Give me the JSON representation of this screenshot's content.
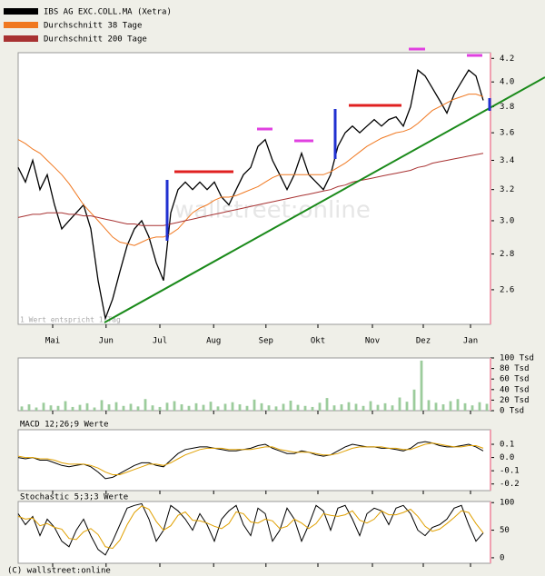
{
  "chart_data": [
    {
      "type": "line",
      "log_scale": true,
      "note": "1 Wert entspricht 1 Tag",
      "watermark": "wallstreet:online",
      "xlim": [
        0,
        65
      ],
      "xticks": [
        {
          "value": 4.75,
          "label": "Mai"
        },
        {
          "value": 12.1,
          "label": "Jun"
        },
        {
          "value": 19.5,
          "label": "Jul"
        },
        {
          "value": 26.9,
          "label": "Aug"
        },
        {
          "value": 34.1,
          "label": "Sep"
        },
        {
          "value": 41.25,
          "label": "Okt"
        },
        {
          "value": 48.75,
          "label": "Nov"
        },
        {
          "value": 55.75,
          "label": "Dez"
        },
        {
          "value": 62.25,
          "label": "Jan"
        }
      ],
      "ylim": [
        2.42,
        4.25
      ],
      "yticks": [
        2.6,
        2.8,
        {
          "value": 3,
          "label": "3.0"
        },
        3.2,
        3.4,
        3.6,
        3.8,
        {
          "value": 4,
          "label": "4.0"
        },
        4.2
      ],
      "series": [
        {
          "name": "IBS AG EXC.COLL.MA (Xetra)",
          "color": "#000000",
          "values": [
            3.35,
            3.25,
            3.4,
            3.2,
            3.3,
            3.1,
            2.95,
            3.0,
            3.05,
            3.1,
            2.95,
            2.65,
            2.45,
            2.55,
            2.7,
            2.85,
            2.95,
            3.0,
            2.9,
            2.75,
            2.65,
            3.05,
            3.2,
            3.25,
            3.2,
            3.25,
            3.2,
            3.25,
            3.15,
            3.1,
            3.2,
            3.3,
            3.35,
            3.5,
            3.55,
            3.4,
            3.3,
            3.2,
            3.3,
            3.45,
            3.3,
            3.25,
            3.2,
            3.3,
            3.5,
            3.6,
            3.65,
            3.6,
            3.65,
            3.7,
            3.65,
            3.7,
            3.72,
            3.65,
            3.8,
            4.1,
            4.05,
            3.95,
            3.85,
            3.75,
            3.9,
            4.0,
            4.1,
            4.05,
            3.85
          ]
        },
        {
          "name": "Durchschnitt 38 Tage",
          "color": "#f07820",
          "values": [
            3.55,
            3.52,
            3.48,
            3.45,
            3.4,
            3.35,
            3.3,
            3.24,
            3.17,
            3.1,
            3.05,
            3.0,
            2.95,
            2.9,
            2.87,
            2.86,
            2.85,
            2.87,
            2.89,
            2.9,
            2.9,
            2.92,
            2.95,
            3.0,
            3.05,
            3.08,
            3.1,
            3.13,
            3.15,
            3.15,
            3.16,
            3.18,
            3.2,
            3.22,
            3.25,
            3.28,
            3.3,
            3.3,
            3.3,
            3.3,
            3.3,
            3.3,
            3.3,
            3.32,
            3.35,
            3.38,
            3.42,
            3.46,
            3.5,
            3.53,
            3.56,
            3.58,
            3.6,
            3.61,
            3.63,
            3.67,
            3.72,
            3.77,
            3.8,
            3.83,
            3.86,
            3.88,
            3.9,
            3.9,
            3.88
          ]
        },
        {
          "name": "Durchschnitt 200 Tage",
          "color": "#a83232",
          "values": [
            3.02,
            3.03,
            3.04,
            3.04,
            3.05,
            3.05,
            3.05,
            3.04,
            3.04,
            3.03,
            3.03,
            3.02,
            3.01,
            3.0,
            2.99,
            2.98,
            2.98,
            2.97,
            2.97,
            2.97,
            2.97,
            2.98,
            2.99,
            3.0,
            3.01,
            3.02,
            3.03,
            3.04,
            3.05,
            3.06,
            3.07,
            3.08,
            3.09,
            3.1,
            3.11,
            3.12,
            3.13,
            3.14,
            3.15,
            3.16,
            3.17,
            3.18,
            3.19,
            3.2,
            3.22,
            3.23,
            3.25,
            3.26,
            3.27,
            3.28,
            3.29,
            3.3,
            3.31,
            3.32,
            3.33,
            3.35,
            3.36,
            3.38,
            3.39,
            3.4,
            3.41,
            3.42,
            3.43,
            3.44,
            3.45
          ]
        }
      ]
    },
    {
      "type": "bar",
      "color": "#9ccc9c",
      "xlim": [
        0,
        65
      ],
      "ylim": [
        0,
        100
      ],
      "yticks": [
        {
          "value": 0,
          "label": "0 Tsd"
        },
        {
          "value": 20,
          "label": "20 Tsd"
        },
        {
          "value": 40,
          "label": "40 Tsd"
        },
        {
          "value": 60,
          "label": "60 Tsd"
        },
        {
          "value": 80,
          "label": "80 Tsd"
        },
        {
          "value": 100,
          "label": "100 Tsd"
        }
      ],
      "values": [
        8,
        12,
        6,
        15,
        10,
        9,
        18,
        7,
        11,
        14,
        6,
        20,
        12,
        16,
        9,
        13,
        8,
        22,
        10,
        7,
        15,
        18,
        12,
        9,
        14,
        11,
        17,
        8,
        13,
        16,
        12,
        9,
        21,
        14,
        10,
        8,
        13,
        19,
        11,
        9,
        7,
        15,
        24,
        10,
        12,
        16,
        13,
        9,
        18,
        11,
        14,
        10,
        25,
        17,
        40,
        95,
        20,
        15,
        12,
        18,
        22,
        14,
        10,
        16,
        13
      ]
    },
    {
      "type": "line",
      "title": "MACD 12;26;9 Werte",
      "xlim": [
        0,
        65
      ],
      "ylim": [
        -0.25,
        0.21
      ],
      "yticks": [
        0.1,
        {
          "value": 0,
          "label": "0.0"
        },
        -0.1,
        -0.2
      ],
      "series": [
        {
          "color": "#000000",
          "values": [
            0.0,
            -0.01,
            0.0,
            -0.02,
            -0.02,
            -0.04,
            -0.06,
            -0.07,
            -0.06,
            -0.05,
            -0.07,
            -0.11,
            -0.16,
            -0.15,
            -0.12,
            -0.09,
            -0.06,
            -0.04,
            -0.04,
            -0.06,
            -0.07,
            -0.02,
            0.03,
            0.06,
            0.07,
            0.08,
            0.08,
            0.07,
            0.06,
            0.05,
            0.05,
            0.06,
            0.07,
            0.09,
            0.1,
            0.07,
            0.05,
            0.03,
            0.03,
            0.05,
            0.04,
            0.02,
            0.01,
            0.02,
            0.05,
            0.08,
            0.1,
            0.09,
            0.08,
            0.08,
            0.07,
            0.07,
            0.06,
            0.05,
            0.07,
            0.11,
            0.12,
            0.11,
            0.09,
            0.08,
            0.08,
            0.09,
            0.1,
            0.08,
            0.05
          ]
        },
        {
          "color": "#e0a000",
          "values": [
            0.01,
            0.0,
            0.0,
            -0.01,
            -0.01,
            -0.02,
            -0.04,
            -0.05,
            -0.05,
            -0.05,
            -0.06,
            -0.08,
            -0.11,
            -0.13,
            -0.13,
            -0.11,
            -0.09,
            -0.07,
            -0.05,
            -0.05,
            -0.06,
            -0.04,
            -0.01,
            0.02,
            0.04,
            0.06,
            0.07,
            0.07,
            0.07,
            0.06,
            0.06,
            0.06,
            0.06,
            0.07,
            0.08,
            0.08,
            0.06,
            0.05,
            0.04,
            0.04,
            0.04,
            0.03,
            0.02,
            0.02,
            0.03,
            0.05,
            0.07,
            0.08,
            0.08,
            0.08,
            0.08,
            0.07,
            0.07,
            0.06,
            0.06,
            0.08,
            0.1,
            0.11,
            0.1,
            0.09,
            0.08,
            0.08,
            0.09,
            0.09,
            0.07
          ]
        }
      ]
    },
    {
      "type": "line",
      "title": "Stochastic 5;3;3 Werte",
      "xlim": [
        0,
        65
      ],
      "ylim": [
        -10,
        102
      ],
      "yticks": [
        100,
        50,
        0
      ],
      "series": [
        {
          "color": "#000000",
          "values": [
            80,
            60,
            75,
            40,
            70,
            55,
            30,
            20,
            50,
            70,
            40,
            15,
            5,
            30,
            60,
            90,
            95,
            98,
            70,
            30,
            50,
            95,
            85,
            70,
            50,
            80,
            60,
            30,
            70,
            85,
            95,
            60,
            40,
            90,
            80,
            30,
            50,
            90,
            70,
            30,
            60,
            95,
            85,
            50,
            90,
            95,
            70,
            40,
            80,
            90,
            85,
            60,
            90,
            95,
            80,
            50,
            40,
            55,
            60,
            70,
            90,
            95,
            60,
            30,
            45
          ]
        },
        {
          "color": "#e0a000",
          "values": [
            75,
            70,
            72,
            58,
            62,
            55,
            52,
            35,
            33,
            47,
            53,
            42,
            20,
            17,
            32,
            60,
            82,
            94,
            88,
            66,
            50,
            58,
            77,
            83,
            68,
            67,
            63,
            57,
            53,
            62,
            83,
            80,
            65,
            63,
            70,
            67,
            53,
            57,
            70,
            63,
            53,
            62,
            80,
            77,
            75,
            78,
            85,
            68,
            63,
            70,
            85,
            78,
            78,
            82,
            88,
            75,
            57,
            48,
            52,
            62,
            73,
            85,
            82,
            62,
            45
          ]
        }
      ]
    }
  ],
  "footer": "(C) wallstreet:online"
}
